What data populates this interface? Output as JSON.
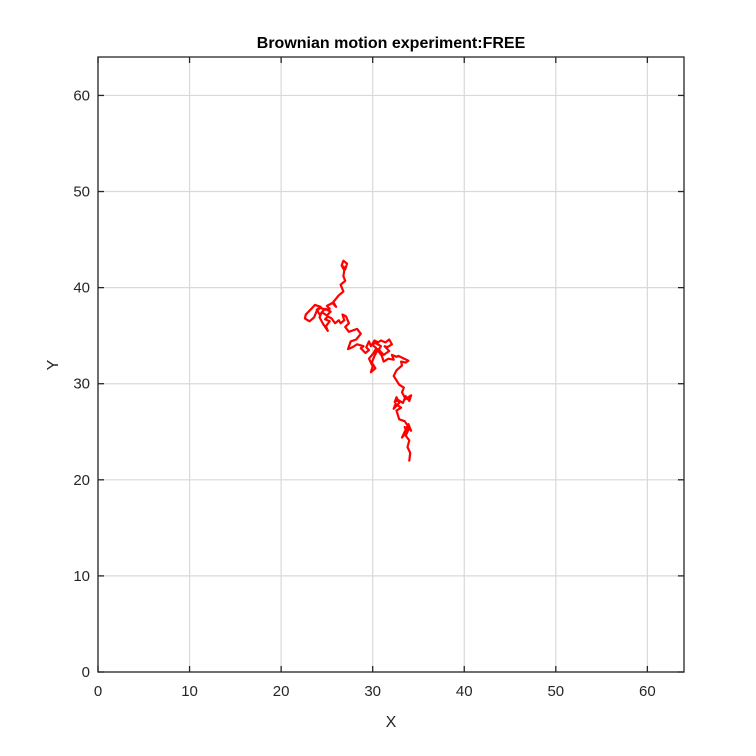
{
  "chart_data": {
    "type": "line",
    "title": "Brownian motion experiment:FREE",
    "xlabel": "X",
    "ylabel": "Y",
    "xlim": [
      0,
      64
    ],
    "ylim": [
      0,
      64
    ],
    "xticks": [
      0,
      10,
      20,
      30,
      40,
      50,
      60
    ],
    "yticks": [
      0,
      10,
      20,
      30,
      40,
      50,
      60
    ],
    "xtick_labels": [
      "0",
      "10",
      "20",
      "30",
      "40",
      "50",
      "60"
    ],
    "ytick_labels": [
      "0",
      "10",
      "20",
      "30",
      "40",
      "50",
      "60"
    ],
    "grid": true,
    "legend": "none",
    "series": [
      {
        "color": "#ff0000",
        "x": [
          34.0,
          34.1,
          33.8,
          34.0,
          33.6,
          33.9,
          33.5,
          33.7,
          33.2,
          33.9,
          34.2,
          33.5,
          32.9,
          32.6,
          33.1,
          32.5,
          32.3,
          32.9,
          32.6,
          32.4,
          32.8,
          33.3,
          33.6,
          34.0,
          34.2,
          33.6,
          33.2,
          33.4,
          32.9,
          32.3,
          32.6,
          33.2,
          33.1,
          33.6,
          33.9,
          32.8,
          32.6,
          32.1,
          32.3,
          31.7,
          31.2,
          31.0,
          30.6,
          30.9,
          30.4,
          30.9,
          31.4,
          31.8,
          32.1,
          31.6,
          31.3,
          31.8,
          31.2,
          30.6,
          30.2,
          29.9,
          30.3,
          29.8,
          30.0,
          29.6,
          30.1,
          30.4,
          29.9,
          30.6,
          30.2,
          29.8,
          29.6,
          29.3,
          29.6,
          29.2,
          28.7,
          29.0,
          28.3,
          27.8,
          27.3,
          27.6,
          28.2,
          28.7,
          28.3,
          27.4,
          27.0,
          27.4,
          27.1,
          26.7,
          26.9,
          26.5,
          26.3,
          25.9,
          25.5,
          25.1,
          24.8,
          25.3,
          24.9,
          25.1,
          24.6,
          24.2,
          24.4,
          24.8,
          25.4,
          25.0,
          24.5,
          24.2,
          23.9,
          24.3,
          23.7,
          23.4,
          23.0,
          22.7,
          22.6,
          23.1,
          23.6,
          23.9,
          24.3,
          24.8,
          25.3,
          25.0,
          25.6,
          26.0,
          25.7,
          26.3,
          26.8,
          26.5,
          27.0,
          26.8,
          26.9,
          26.6,
          26.8,
          27.2,
          27.0,
          26.8
        ],
        "y": [
          22.0,
          22.8,
          23.4,
          24.1,
          24.6,
          25.2,
          25.5,
          25.0,
          24.4,
          25.8,
          25.1,
          26.1,
          26.3,
          27.2,
          27.5,
          27.9,
          27.4,
          28.0,
          28.6,
          28.1,
          28.3,
          28.0,
          28.7,
          28.2,
          28.8,
          28.4,
          29.1,
          29.6,
          29.9,
          30.8,
          31.4,
          31.9,
          32.3,
          32.2,
          32.4,
          32.9,
          32.8,
          33.0,
          32.5,
          32.6,
          32.3,
          32.9,
          33.4,
          33.9,
          34.2,
          34.5,
          34.3,
          34.6,
          34.1,
          33.8,
          33.9,
          33.4,
          33.0,
          33.6,
          32.9,
          32.2,
          31.6,
          31.2,
          31.8,
          32.6,
          33.2,
          33.7,
          34.1,
          34.3,
          34.5,
          33.9,
          34.4,
          33.8,
          33.5,
          33.2,
          33.7,
          33.9,
          34.1,
          33.8,
          33.6,
          34.4,
          34.6,
          35.2,
          35.7,
          35.4,
          35.9,
          36.3,
          37.0,
          37.2,
          36.6,
          36.3,
          36.6,
          36.3,
          36.8,
          37.0,
          36.7,
          36.5,
          36.0,
          35.5,
          36.2,
          36.9,
          37.4,
          37.8,
          37.5,
          37.1,
          37.4,
          37.2,
          37.7,
          38.0,
          38.2,
          37.9,
          37.5,
          37.2,
          36.8,
          36.5,
          36.9,
          37.6,
          37.9,
          37.7,
          37.8,
          38.1,
          38.4,
          38.0,
          38.5,
          39.2,
          39.6,
          40.3,
          40.7,
          41.2,
          41.8,
          42.3,
          42.8,
          42.5,
          41.9,
          42.2
        ]
      }
    ]
  }
}
